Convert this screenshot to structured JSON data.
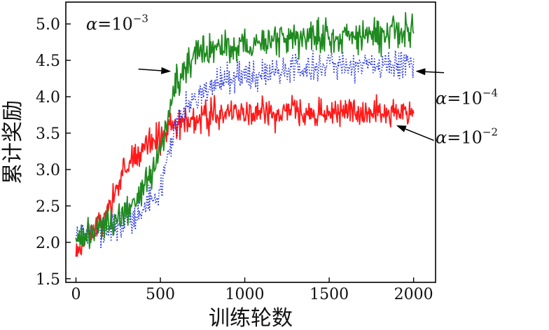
{
  "chart_data": {
    "type": "line",
    "xlabel": "训练轮数",
    "ylabel": "累计奖励",
    "xlim": [
      -60,
      2130
    ],
    "ylim": [
      1.45,
      5.3
    ],
    "xticks": [
      0,
      500,
      1000,
      1500,
      2000
    ],
    "xtick_labels": [
      "0",
      "500",
      "1000",
      "1500",
      "2000"
    ],
    "yticks": [
      1.5,
      2.0,
      2.5,
      3.0,
      3.5,
      4.0,
      4.5,
      5.0
    ],
    "ytick_labels": [
      "1.5",
      "2.0",
      "2.5",
      "3.0",
      "3.5",
      "4.0",
      "4.5",
      "5.0"
    ],
    "grid": false,
    "series": [
      {
        "name": "α=10⁻³",
        "label": {
          "symbol": "α",
          "eq": "=",
          "base": "10",
          "exp": "−3"
        },
        "color": "#1f8a1f",
        "style": "solid",
        "noise": 0.11,
        "seed": 3,
        "x": [
          0,
          50,
          100,
          150,
          200,
          250,
          300,
          350,
          400,
          450,
          500,
          550,
          600,
          650,
          700,
          750,
          800,
          900,
          1000,
          1100,
          1200,
          1300,
          1400,
          1500,
          1600,
          1700,
          1800,
          1900,
          2000
        ],
        "values": [
          1.95,
          2.1,
          2.15,
          2.2,
          2.3,
          2.35,
          2.4,
          2.6,
          2.75,
          2.9,
          3.3,
          3.8,
          4.2,
          4.4,
          4.5,
          4.6,
          4.65,
          4.7,
          4.72,
          4.75,
          4.78,
          4.8,
          4.82,
          4.83,
          4.85,
          4.86,
          4.87,
          4.88,
          4.9
        ]
      },
      {
        "name": "α=10⁻⁴",
        "label": {
          "symbol": "α",
          "eq": "=",
          "base": "10",
          "exp": "−4"
        },
        "color": "#1f2fe0",
        "style": "dotted",
        "noise": 0.1,
        "seed": 7,
        "x": [
          0,
          50,
          100,
          150,
          200,
          250,
          300,
          350,
          400,
          450,
          500,
          550,
          600,
          650,
          700,
          750,
          800,
          900,
          1000,
          1100,
          1200,
          1300,
          1400,
          1500,
          1600,
          1700,
          1800,
          1900,
          2000
        ],
        "values": [
          2.05,
          2.1,
          2.15,
          2.18,
          2.2,
          2.25,
          2.3,
          2.35,
          2.45,
          2.55,
          2.7,
          3.3,
          3.7,
          3.85,
          3.95,
          4.05,
          4.12,
          4.22,
          4.28,
          4.32,
          4.35,
          4.38,
          4.4,
          4.42,
          4.43,
          4.44,
          4.45,
          4.45,
          4.45
        ]
      },
      {
        "name": "α=10⁻²",
        "label": {
          "symbol": "α",
          "eq": "=",
          "base": "10",
          "exp": "−2"
        },
        "color": "#ff1a1a",
        "style": "solid",
        "noise": 0.1,
        "seed": 11,
        "x": [
          0,
          50,
          100,
          150,
          200,
          250,
          300,
          350,
          400,
          450,
          500,
          550,
          600,
          650,
          700,
          750,
          800,
          900,
          1000,
          1100,
          1200,
          1300,
          1400,
          1500,
          1600,
          1700,
          1800,
          1900,
          2000
        ],
        "values": [
          1.9,
          2.05,
          2.15,
          2.3,
          2.5,
          2.75,
          3.05,
          3.2,
          3.3,
          3.35,
          3.45,
          3.55,
          3.62,
          3.68,
          3.7,
          3.72,
          3.74,
          3.76,
          3.77,
          3.78,
          3.78,
          3.79,
          3.8,
          3.8,
          3.8,
          3.8,
          3.8,
          3.8,
          3.8
        ]
      }
    ],
    "annotations": [
      {
        "series": 0,
        "text_x": 60,
        "text_y": 4.92,
        "arrow_from": [
          370,
          4.38
        ],
        "arrow_to": [
          555,
          4.35
        ]
      },
      {
        "series": 1,
        "text_x": 2130,
        "text_y": 3.9,
        "arrow_from": [
          2180,
          4.33
        ],
        "arrow_to": [
          2020,
          4.35
        ]
      },
      {
        "series": 2,
        "text_x": 2130,
        "text_y": 3.36,
        "arrow_from": [
          2120,
          3.4
        ],
        "arrow_to": [
          1905,
          3.6
        ]
      }
    ]
  }
}
